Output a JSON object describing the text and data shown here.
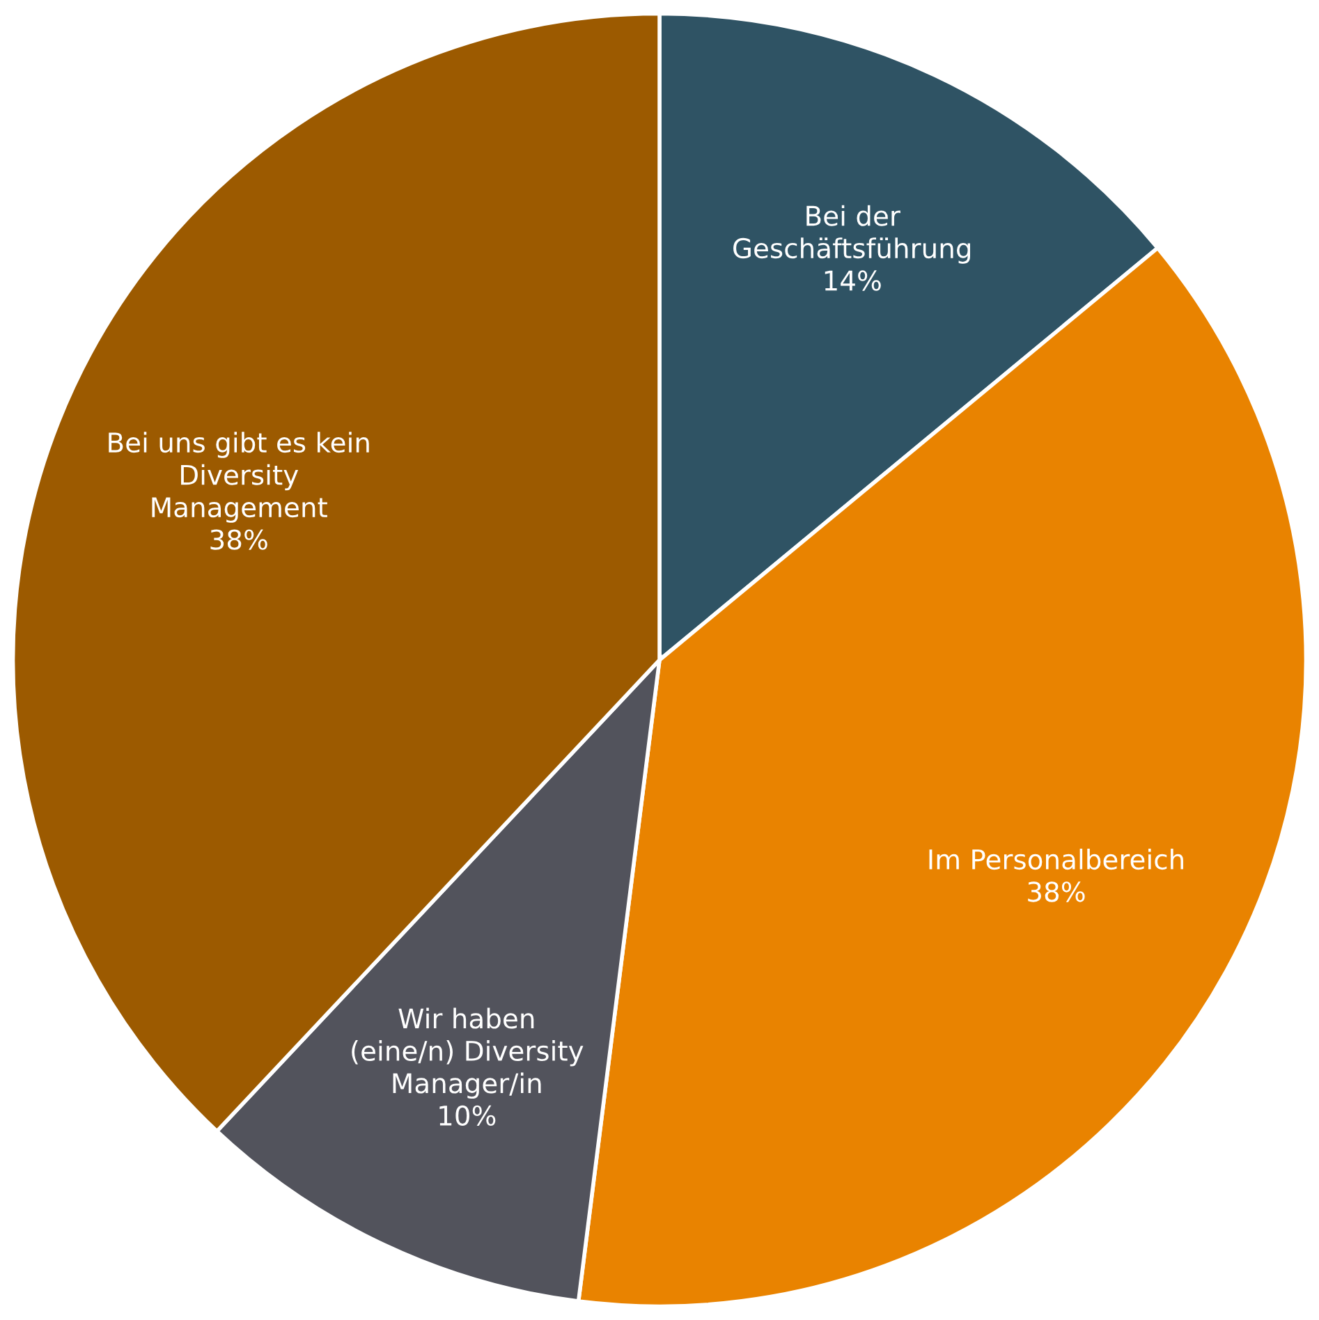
{
  "chart_data": {
    "type": "pie",
    "categories": [
      "Bei der\nGeschäftsführung",
      "Im Personalbereich",
      "Wir haben\n(eine/n) Diversity\nManager/in",
      "Bei uns gibt es kein\nDiversity\nManagement"
    ],
    "values": [
      14,
      38,
      10,
      38
    ],
    "value_labels": [
      "14%",
      "38%",
      "10%",
      "38%"
    ],
    "colors": [
      "#2f5364",
      "#e98300",
      "#52535c",
      "#9c5a00"
    ],
    "legend": false
  }
}
